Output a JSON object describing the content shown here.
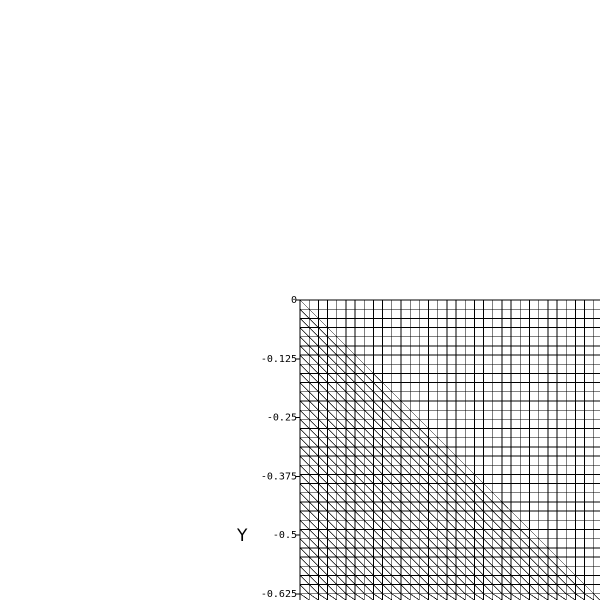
{
  "chart_data": {
    "type": "mesh",
    "ylabel": "Y",
    "ylim": [
      -0.625,
      0
    ],
    "y_ticks": [
      {
        "value": 0,
        "label": "0"
      },
      {
        "value": -0.125,
        "label": "-0.125"
      },
      {
        "value": -0.25,
        "label": "-0.25"
      },
      {
        "value": -0.375,
        "label": "-0.375"
      },
      {
        "value": -0.5,
        "label": "-0.5"
      },
      {
        "value": -0.625,
        "label": "-0.625"
      }
    ],
    "mesh": {
      "cell_size": 0.01953125,
      "diagonal_region": "below the line y = -x (lower-left triangle cells)",
      "stroke_color": "#000000"
    },
    "grid": true
  }
}
